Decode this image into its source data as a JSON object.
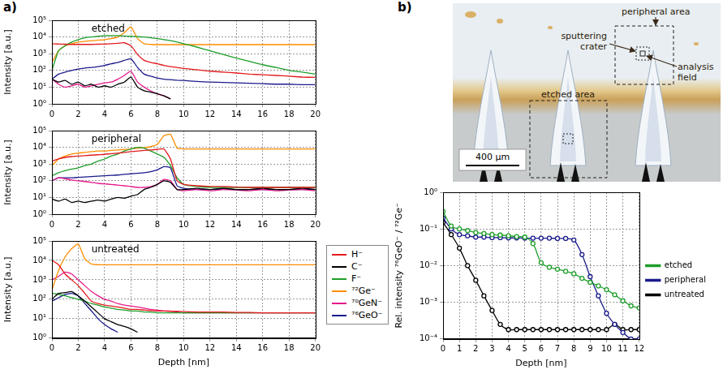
{
  "panel_labels": [
    "a)",
    "b)"
  ],
  "chart_data": [
    {
      "type": "line",
      "title": "etched",
      "y_label": "Intensity [a.u.]",
      "x": [
        0,
        0.5,
        1,
        1.5,
        2,
        2.5,
        3,
        3.5,
        4,
        4.5,
        5,
        5.5,
        6,
        6.5,
        7,
        7.5,
        8,
        8.5,
        9,
        9.5,
        10,
        11,
        12,
        13,
        14,
        15,
        16,
        17,
        18,
        19,
        20
      ],
      "series": [
        {
          "name": "H⁻",
          "color": "#e31a1c",
          "values": [
            4000,
            3800,
            3700,
            3600,
            3600,
            3600,
            3600,
            3700,
            3800,
            4000,
            4200,
            4500,
            3000,
            900,
            400,
            300,
            250,
            200,
            170,
            150,
            130,
            110,
            90,
            80,
            70,
            60,
            55,
            50,
            45,
            40,
            38
          ]
        },
        {
          "name": "C⁻",
          "color": "#000000",
          "values": [
            30,
            20,
            25,
            15,
            20,
            12,
            15,
            10,
            12,
            10,
            15,
            20,
            40,
            10,
            6,
            5,
            4,
            3,
            2,
            null,
            null,
            null,
            null,
            null,
            null,
            null,
            null,
            null,
            null,
            null,
            null
          ]
        },
        {
          "name": "F⁻",
          "color": "#1e9e2a",
          "values": [
            100,
            1500,
            3000,
            5000,
            7000,
            9000,
            10000,
            11000,
            12000,
            12000,
            12000,
            11500,
            11000,
            10500,
            10000,
            9000,
            8000,
            7000,
            6000,
            5000,
            4000,
            2500,
            1500,
            900,
            550,
            350,
            220,
            150,
            100,
            80,
            60
          ]
        },
        {
          "name": "⁷²Ge⁻",
          "color": "#ff8c00",
          "values": [
            300,
            1500,
            3000,
            4000,
            5000,
            5500,
            6000,
            6500,
            7000,
            8000,
            10000,
            18000,
            40000,
            8000,
            4000,
            3600,
            3500,
            3500,
            3500,
            3500,
            3500,
            3500,
            3500,
            3500,
            3500,
            3500,
            3500,
            3500,
            3500,
            3500,
            3500
          ]
        },
        {
          "name": "⁷⁰GeN⁻",
          "color": "#e6198a",
          "values": [
            30,
            15,
            10,
            12,
            15,
            10,
            12,
            15,
            18,
            20,
            30,
            50,
            90,
            20,
            10,
            6,
            4,
            3,
            2,
            null,
            null,
            null,
            null,
            null,
            null,
            null,
            null,
            null,
            null,
            null,
            null
          ]
        },
        {
          "name": "⁷⁶GeO⁻",
          "color": "#1a1a8c",
          "values": [
            30,
            60,
            80,
            100,
            120,
            140,
            150,
            170,
            200,
            250,
            300,
            400,
            500,
            150,
            60,
            45,
            35,
            30,
            28,
            26,
            25,
            22,
            20,
            19,
            18,
            17,
            16,
            15,
            15,
            14,
            14
          ]
        }
      ],
      "xlim": [
        0,
        20
      ],
      "xticks": [
        0,
        2,
        4,
        6,
        8,
        10,
        12,
        14,
        16,
        18,
        20
      ],
      "ylim": [
        1,
        100000
      ],
      "yticks": [
        {
          "value": 1,
          "label": "10⁰"
        },
        {
          "value": 10,
          "label": "10¹"
        },
        {
          "value": 100,
          "label": "10²"
        },
        {
          "value": 1000,
          "label": "10³"
        },
        {
          "value": 10000,
          "label": "10⁴"
        },
        {
          "value": 100000,
          "label": "10⁵"
        }
      ],
      "log": "y",
      "grid": true
    },
    {
      "type": "line",
      "title": "peripheral",
      "y_label": "Intensity [a.u.]",
      "x": [
        0,
        0.5,
        1,
        1.5,
        2,
        2.5,
        3,
        3.5,
        4,
        4.5,
        5,
        5.5,
        6,
        6.5,
        7,
        7.5,
        8,
        8.5,
        9,
        9.5,
        10,
        11,
        12,
        13,
        14,
        15,
        16,
        17,
        18,
        19,
        20
      ],
      "series": [
        {
          "name": "H⁻",
          "color": "#e31a1c",
          "values": [
            1500,
            2000,
            2500,
            2800,
            3000,
            3200,
            3400,
            3600,
            3800,
            4200,
            4500,
            5000,
            5500,
            6000,
            6500,
            7000,
            7500,
            8000,
            2000,
            100,
            60,
            50,
            45,
            45,
            42,
            40,
            40,
            40,
            40,
            40,
            40
          ]
        },
        {
          "name": "C⁻",
          "color": "#000000",
          "values": [
            8,
            6,
            8,
            5,
            6,
            5,
            6,
            7,
            6,
            8,
            10,
            9,
            12,
            15,
            30,
            40,
            60,
            100,
            80,
            30,
            30,
            35,
            30,
            35,
            30,
            30,
            35,
            30,
            30,
            35,
            30
          ]
        },
        {
          "name": "F⁻",
          "color": "#1e9e2a",
          "values": [
            200,
            300,
            400,
            500,
            600,
            800,
            1000,
            1500,
            2000,
            3000,
            4000,
            6000,
            8000,
            10000,
            9000,
            6000,
            4000,
            2500,
            800,
            150,
            60,
            45,
            40,
            40,
            40,
            40,
            40,
            40,
            40,
            40,
            40
          ]
        },
        {
          "name": "⁷²Ge⁻",
          "color": "#ff8c00",
          "values": [
            800,
            2000,
            3000,
            4000,
            4500,
            5000,
            5500,
            6000,
            6000,
            6500,
            7000,
            7500,
            8000,
            9000,
            9500,
            11000,
            15000,
            50000,
            60000,
            9000,
            8000,
            8000,
            8000,
            8000,
            8000,
            8000,
            8000,
            8000,
            8000,
            8000,
            8000
          ]
        },
        {
          "name": "⁷⁰GeN⁻",
          "color": "#e6198a",
          "values": [
            100,
            150,
            130,
            110,
            100,
            90,
            80,
            70,
            65,
            60,
            55,
            50,
            45,
            40,
            40,
            45,
            60,
            120,
            100,
            30,
            25,
            30,
            25,
            30,
            28,
            25,
            30,
            25,
            28,
            30,
            25
          ]
        },
        {
          "name": "⁷⁶GeO⁻",
          "color": "#1a1a8c",
          "values": [
            100,
            150,
            150,
            150,
            160,
            170,
            180,
            190,
            200,
            210,
            220,
            240,
            260,
            280,
            300,
            350,
            450,
            700,
            600,
            50,
            35,
            30,
            30,
            32,
            30,
            30,
            30,
            30,
            30,
            30,
            30
          ]
        }
      ],
      "xlim": [
        0,
        20
      ],
      "xticks": [
        0,
        2,
        4,
        6,
        8,
        10,
        12,
        14,
        16,
        18,
        20
      ],
      "ylim": [
        1,
        100000
      ],
      "yticks": [
        {
          "value": 1,
          "label": "10⁰"
        },
        {
          "value": 10,
          "label": "10¹"
        },
        {
          "value": 100,
          "label": "10²"
        },
        {
          "value": 1000,
          "label": "10³"
        },
        {
          "value": 10000,
          "label": "10⁴"
        },
        {
          "value": 100000,
          "label": "10⁵"
        }
      ],
      "log": "y",
      "grid": true
    },
    {
      "type": "line",
      "title": "untreated",
      "x_label": "Depth [nm]",
      "y_label": "Intensity [a.u.]",
      "x": [
        0,
        0.5,
        1,
        1.5,
        2,
        2.5,
        3,
        3.5,
        4,
        4.5,
        5,
        5.5,
        6,
        6.5,
        7,
        7.5,
        8,
        8.5,
        9,
        9.5,
        10,
        11,
        12,
        13,
        14,
        15,
        16,
        17,
        18,
        19,
        20
      ],
      "series": [
        {
          "name": "H⁻",
          "color": "#e31a1c",
          "values": [
            10000,
            6000,
            2000,
            1000,
            500,
            200,
            80,
            60,
            50,
            45,
            40,
            35,
            30,
            30,
            28,
            26,
            25,
            25,
            24,
            24,
            23,
            22,
            22,
            22,
            21,
            21,
            20,
            20,
            20,
            20,
            20
          ]
        },
        {
          "name": "C⁻",
          "color": "#000000",
          "values": [
            100,
            200,
            220,
            250,
            150,
            80,
            40,
            20,
            10,
            7,
            5,
            4,
            3,
            2,
            null,
            null,
            null,
            null,
            null,
            null,
            null,
            null,
            null,
            null,
            null,
            null,
            null,
            null,
            null,
            null,
            null
          ]
        },
        {
          "name": "F⁻",
          "color": "#1e9e2a",
          "values": [
            200,
            180,
            150,
            120,
            100,
            80,
            60,
            50,
            40,
            35,
            30,
            28,
            25,
            25,
            22,
            22,
            20,
            20,
            20,
            20,
            20,
            20,
            20,
            20,
            20,
            20,
            20,
            20,
            20,
            20,
            20
          ]
        },
        {
          "name": "⁷²Ge⁻",
          "color": "#ff8c00",
          "values": [
            300,
            3000,
            15000,
            40000,
            70000,
            12000,
            6500,
            6000,
            6000,
            6000,
            6000,
            6000,
            6000,
            6000,
            6000,
            6000,
            6000,
            6000,
            6000,
            6000,
            6000,
            6000,
            6000,
            6000,
            6000,
            6000,
            6000,
            6000,
            6000,
            6000,
            6000
          ]
        },
        {
          "name": "⁷⁰GeN⁻",
          "color": "#e6198a",
          "values": [
            1000,
            1500,
            2500,
            2000,
            1000,
            500,
            250,
            150,
            100,
            80,
            60,
            50,
            45,
            40,
            35,
            30,
            28,
            25,
            25,
            22,
            20,
            20,
            20,
            20,
            20,
            20,
            20,
            20,
            20,
            20,
            20
          ]
        },
        {
          "name": "⁷⁶GeO⁻",
          "color": "#1a1a8c",
          "values": [
            80,
            120,
            180,
            200,
            150,
            60,
            25,
            10,
            5,
            3,
            2,
            null,
            null,
            null,
            null,
            null,
            null,
            null,
            null,
            null,
            null,
            null,
            null,
            null,
            null,
            null,
            null,
            null,
            null,
            null,
            null
          ]
        }
      ],
      "xlim": [
        0,
        20
      ],
      "xticks": [
        0,
        2,
        4,
        6,
        8,
        10,
        12,
        14,
        16,
        18,
        20
      ],
      "ylim": [
        1,
        100000
      ],
      "yticks": [
        {
          "value": 1,
          "label": "10⁰"
        },
        {
          "value": 10,
          "label": "10¹"
        },
        {
          "value": 100,
          "label": "10²"
        },
        {
          "value": 1000,
          "label": "10³"
        },
        {
          "value": 10000,
          "label": "10⁴"
        },
        {
          "value": 100000,
          "label": "10⁵"
        }
      ],
      "log": "y",
      "grid": true,
      "legend": "right"
    },
    {
      "type": "line",
      "x_label": "Depth [nm]",
      "y_label": "Rel. intensity ⁷⁶GeO⁻ / ⁷²Ge⁻",
      "x": [
        0,
        0.5,
        1,
        1.5,
        2,
        2.5,
        3,
        3.5,
        4,
        4.5,
        5,
        5.5,
        6,
        6.5,
        7,
        7.5,
        8,
        8.5,
        9,
        9.5,
        10,
        10.5,
        11,
        11.5,
        12
      ],
      "series": [
        {
          "name": "etched",
          "color": "#1e9e2a",
          "marker": "circle",
          "values": [
            0.3,
            0.12,
            0.1,
            0.09,
            0.08,
            0.075,
            0.07,
            0.068,
            0.065,
            0.062,
            0.06,
            0.04,
            0.012,
            0.009,
            0.008,
            0.007,
            0.006,
            0.0045,
            0.0035,
            0.0028,
            0.0022,
            0.0016,
            0.0011,
            0.0008,
            0.0007
          ]
        },
        {
          "name": "peripheral",
          "color": "#1a1a8c",
          "marker": "circle",
          "values": [
            0.2,
            0.1,
            0.07,
            0.065,
            0.06,
            0.06,
            0.058,
            0.058,
            0.057,
            0.057,
            0.056,
            0.056,
            0.056,
            0.056,
            0.055,
            0.055,
            0.05,
            0.02,
            0.005,
            0.0015,
            0.0005,
            0.00025,
            0.00015,
            0.0001,
            0.0001
          ]
        },
        {
          "name": "untreated",
          "color": "#000000",
          "marker": "circle",
          "values": [
            0.15,
            0.07,
            0.03,
            0.01,
            0.004,
            0.0015,
            0.0006,
            0.00025,
            0.00018,
            0.00018,
            0.00018,
            0.00018,
            0.00018,
            0.00018,
            0.00018,
            0.00018,
            0.00018,
            0.00018,
            0.00018,
            0.00018,
            0.00018,
            0.00025,
            0.00018,
            0.00018,
            0.00018
          ]
        }
      ],
      "xlim": [
        0,
        12
      ],
      "xticks": [
        0,
        1,
        2,
        3,
        4,
        5,
        6,
        7,
        8,
        9,
        10,
        11,
        12
      ],
      "ylim": [
        0.0001,
        1
      ],
      "yticks": [
        {
          "value": 0.0001,
          "label": "10⁻⁴"
        },
        {
          "value": 0.001,
          "label": "10⁻³"
        },
        {
          "value": 0.01,
          "label": "10⁻²"
        },
        {
          "value": 0.1,
          "label": "10⁻¹"
        },
        {
          "value": 1,
          "label": "10⁰"
        }
      ],
      "log": "y",
      "grid": true,
      "legend": "right"
    }
  ],
  "photo": {
    "annotations": [
      "peripheral area",
      "sputtering crater",
      "analysis field",
      "etched area"
    ],
    "scale_bar": "400 µm"
  }
}
